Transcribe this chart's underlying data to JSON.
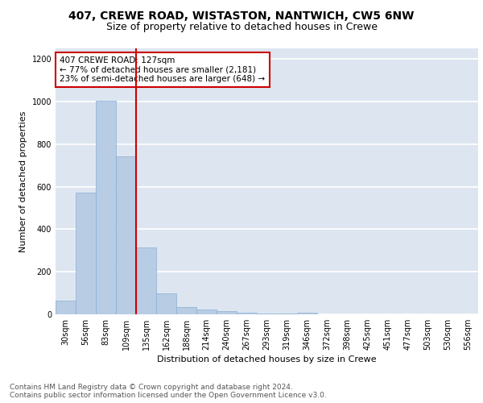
{
  "title": "407, CREWE ROAD, WISTASTON, NANTWICH, CW5 6NW",
  "subtitle": "Size of property relative to detached houses in Crewe",
  "xlabel": "Distribution of detached houses by size in Crewe",
  "ylabel": "Number of detached properties",
  "categories": [
    "30sqm",
    "56sqm",
    "83sqm",
    "109sqm",
    "135sqm",
    "162sqm",
    "188sqm",
    "214sqm",
    "240sqm",
    "267sqm",
    "293sqm",
    "319sqm",
    "346sqm",
    "372sqm",
    "398sqm",
    "425sqm",
    "451sqm",
    "477sqm",
    "503sqm",
    "530sqm",
    "556sqm"
  ],
  "values": [
    63,
    572,
    1003,
    744,
    315,
    100,
    35,
    22,
    15,
    8,
    2,
    2,
    8,
    0,
    0,
    0,
    0,
    0,
    0,
    0,
    0
  ],
  "bar_color": "#b8cce4",
  "bar_edge_color": "#8aafd4",
  "vline_idx": 4,
  "vline_color": "#cc0000",
  "annotation_text": "407 CREWE ROAD: 127sqm\n← 77% of detached houses are smaller (2,181)\n23% of semi-detached houses are larger (648) →",
  "annotation_box_color": "#cc0000",
  "ylim": [
    0,
    1250
  ],
  "yticks": [
    0,
    200,
    400,
    600,
    800,
    1000,
    1200
  ],
  "background_color": "#dde6f0",
  "grid_color": "#ffffff",
  "footnote": "Contains HM Land Registry data © Crown copyright and database right 2024.\nContains public sector information licensed under the Open Government Licence v3.0.",
  "title_fontsize": 10,
  "subtitle_fontsize": 9,
  "axis_label_fontsize": 8,
  "tick_fontsize": 7,
  "annotation_fontsize": 7.5,
  "footnote_fontsize": 6.5
}
